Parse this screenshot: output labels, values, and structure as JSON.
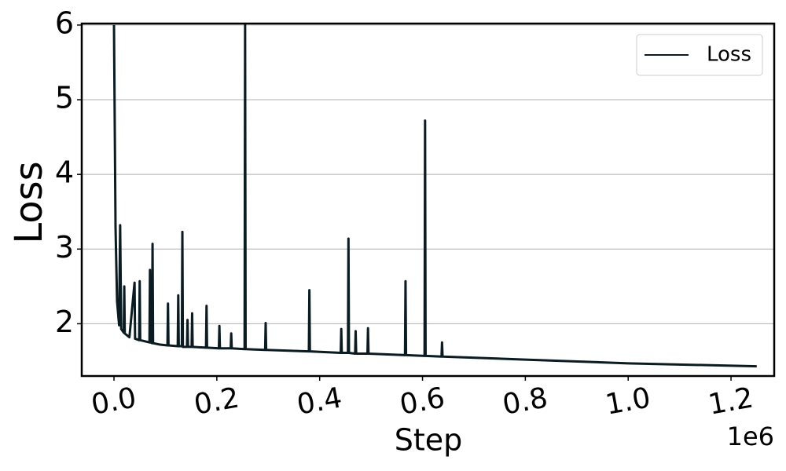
{
  "chart_data": {
    "type": "line",
    "x_label": "Step",
    "y_label": "Loss",
    "x_offset_label": "1e6",
    "xlim": [
      -62700,
      1284000
    ],
    "ylim": [
      1.3,
      6.02
    ],
    "xticks": [
      {
        "value": 0,
        "label": "0.0"
      },
      {
        "value": 200000,
        "label": "0.2"
      },
      {
        "value": 400000,
        "label": "0.4"
      },
      {
        "value": 600000,
        "label": "0.6"
      },
      {
        "value": 800000,
        "label": "0.8"
      },
      {
        "value": 1000000,
        "label": "1.0"
      },
      {
        "value": 1200000,
        "label": "1.2"
      }
    ],
    "yticks": [
      2,
      3,
      4,
      5,
      6
    ],
    "grid": true,
    "legend": "upper right",
    "x": [
      0,
      3000,
      6000,
      10000,
      12000,
      14000,
      19000,
      20000,
      21000,
      30000,
      40000,
      41000,
      49000,
      50000,
      51000,
      69000,
      70000,
      71000,
      74000,
      75000,
      76000,
      90000,
      104000,
      105000,
      106000,
      124000,
      125000,
      126000,
      132000,
      133000,
      134000,
      142000,
      143000,
      144000,
      151000,
      152000,
      153000,
      179000,
      180000,
      181000,
      204000,
      205000,
      206000,
      227000,
      228000,
      229000,
      254000,
      255000,
      256000,
      294000,
      295000,
      296000,
      379000,
      380000,
      381000,
      441000,
      442000,
      443000,
      455000,
      456000,
      457000,
      469000,
      470000,
      471000,
      493000,
      494000,
      495000,
      566000,
      567000,
      568000,
      604000,
      605000,
      606000,
      637000,
      638000,
      639000,
      800000,
      1000000,
      1250000
    ],
    "series": [
      {
        "name": "Loss",
        "color": "#0b1b22",
        "values": [
          6.0,
          3.3,
          2.3,
          1.98,
          3.32,
          1.93,
          1.88,
          2.5,
          1.87,
          1.82,
          2.55,
          1.8,
          1.78,
          2.57,
          1.78,
          1.75,
          2.72,
          1.75,
          1.74,
          3.07,
          1.74,
          1.72,
          1.71,
          2.27,
          1.71,
          1.7,
          2.38,
          1.7,
          1.7,
          3.23,
          1.69,
          1.69,
          2.05,
          1.69,
          1.69,
          2.14,
          1.69,
          1.68,
          2.24,
          1.68,
          1.67,
          1.97,
          1.67,
          1.67,
          1.87,
          1.67,
          1.66,
          6.0,
          1.66,
          1.65,
          2.01,
          1.65,
          1.63,
          2.45,
          1.63,
          1.61,
          1.93,
          1.61,
          1.61,
          3.14,
          1.61,
          1.6,
          1.9,
          1.6,
          1.6,
          1.94,
          1.6,
          1.58,
          2.57,
          1.58,
          1.57,
          4.72,
          1.57,
          1.56,
          1.75,
          1.56,
          1.52,
          1.47,
          1.43
        ]
      }
    ]
  }
}
